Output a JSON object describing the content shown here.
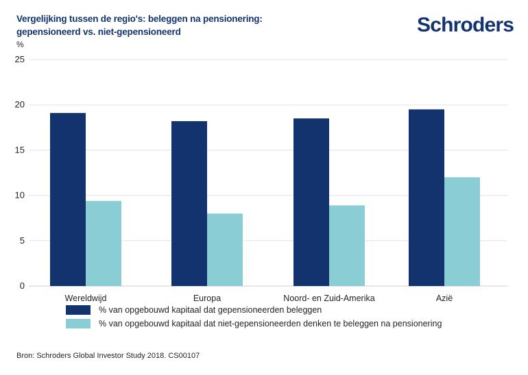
{
  "header": {
    "title_line1": "Vergelijking tussen de regio's: beleggen na pensionering:",
    "title_line2": "gepensioneerd vs. niet-gepensioneerd",
    "logo_text": "Schroders"
  },
  "chart_data": {
    "type": "bar",
    "title": "Vergelijking tussen de regio's: beleggen na pensionering: gepensioneerd vs. niet-gepensioneerd",
    "ylabel": "%",
    "xlabel": "",
    "ylim": [
      0,
      25
    ],
    "yticks": [
      "0",
      "5",
      "10",
      "15",
      "20",
      "25"
    ],
    "grid": true,
    "legend_position": "bottom",
    "categories": [
      "Wereldwijd",
      "Europa",
      "Noord- en Zuid-Amerika",
      "Azië"
    ],
    "series": [
      {
        "name": "% van opgebouwd kapitaal dat gepensioneerden beleggen",
        "color": "#13336f",
        "values": [
          19.1,
          18.2,
          18.5,
          19.5
        ]
      },
      {
        "name": "% van opgebouwd kapitaal dat niet-gepensioneerden denken te beleggen na pensionering",
        "color": "#8bcdd5",
        "values": [
          9.4,
          8.0,
          8.9,
          12.0
        ]
      }
    ]
  },
  "footer": {
    "source": "Bron: Schroders Global Investor Study 2018. CS00107"
  }
}
